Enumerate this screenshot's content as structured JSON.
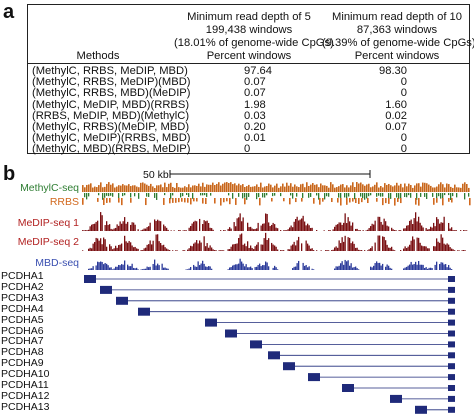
{
  "panel_a": {
    "label": "a",
    "headers": {
      "methods": "Methods",
      "col1": [
        "Minimum read depth of 5",
        "199,438 windows",
        "(18.01% of genome-wide CpGs)",
        "Percent windows"
      ],
      "col2": [
        "Minimum read depth of 10",
        "87,363 windows",
        "(9.39% of genome-wide CpGs)",
        "Percent windows"
      ]
    },
    "rows": [
      {
        "method": "(MethylC, RRBS, MeDIP, MBD)",
        "v1": "97.64",
        "v2": "98.30"
      },
      {
        "method": "(MethylC, RRBS, MeDIP)(MBD)",
        "v1": "0.07",
        "v2": "0"
      },
      {
        "method": "(MethylC, RRBS, MBD)(MeDIP)",
        "v1": "0.07",
        "v2": "0"
      },
      {
        "method": "(MethylC, MeDIP, MBD)(RRBS)",
        "v1": "1.98",
        "v2": "1.60"
      },
      {
        "method": "(RRBS, MeDIP, MBD)(MethylC)",
        "v1": "0.03",
        "v2": "0.02"
      },
      {
        "method": "(MethylC, RRBS)(MeDIP, MBD)",
        "v1": "0.20",
        "v2": "0.07"
      },
      {
        "method": "(MethylC, MeDIP)(RRBS, MBD)",
        "v1": "0.01",
        "v2": "0"
      },
      {
        "method": "(MethylC, MBD)(RRBS, MeDIP)",
        "v1": "0",
        "v2": "0"
      }
    ]
  },
  "panel_b": {
    "label": "b",
    "scale": "50 kb",
    "tracks": [
      {
        "name": "MethylC-seq",
        "color": "#2e7d32"
      },
      {
        "name": "RRBS",
        "color": "#d2691e"
      },
      {
        "name": "MeDIP-seq 1",
        "color": "#b22222"
      },
      {
        "name": "MeDIP-seq 2",
        "color": "#b22222"
      },
      {
        "name": "MBD-seq",
        "color": "#3a4fb0"
      }
    ],
    "genes": [
      "PCDHA1",
      "PCDHA2",
      "PCDHA3",
      "PCDHA4",
      "PCDHA5",
      "PCDHA6",
      "PCDHA7",
      "PCDHA8",
      "PCDHA9",
      "PCDHA10",
      "PCDHA11",
      "PCDHA12",
      "PCDHA13"
    ],
    "colors": {
      "methylc_bar": "#c8661a",
      "methylc_tick": "#2e7d32",
      "rrbs": "#d2691e",
      "medip": "#7a0f12",
      "mbd": "#2b3a9a",
      "gene": "#1f2a7a"
    }
  }
}
